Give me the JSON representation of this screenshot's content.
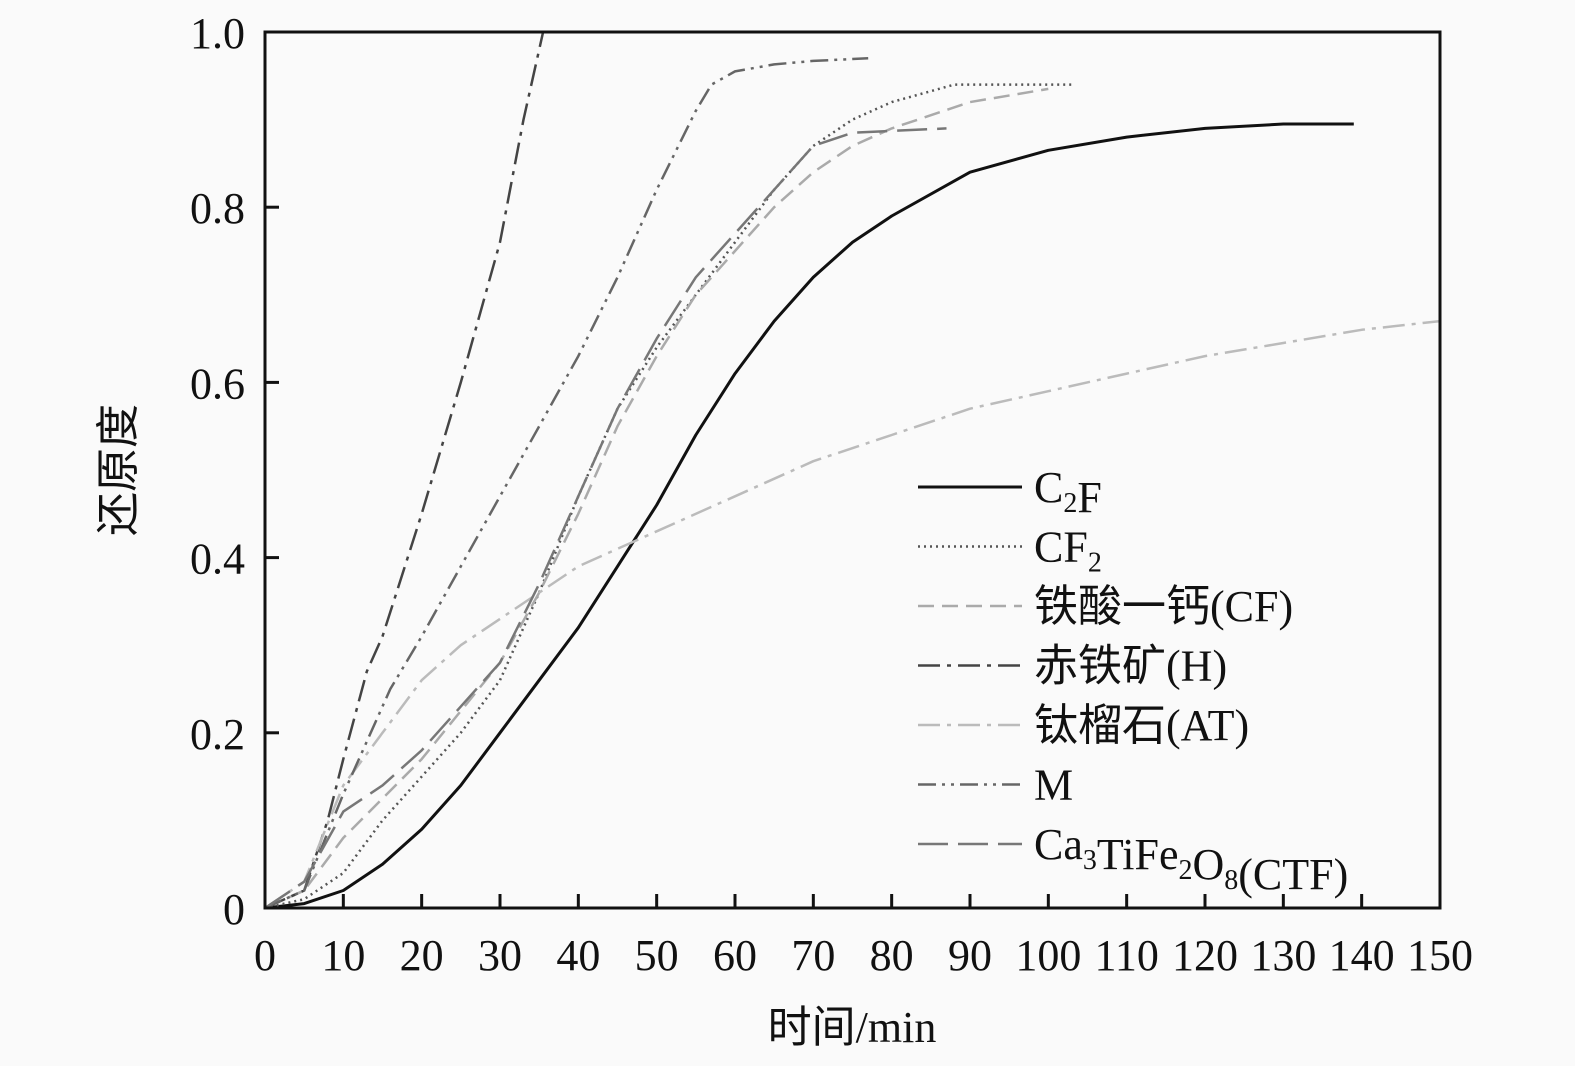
{
  "chart_data": {
    "type": "line",
    "title": "",
    "xlabel": "时间/min",
    "ylabel": "还原度",
    "xlim": [
      0,
      150
    ],
    "ylim": [
      0,
      1.0
    ],
    "xticks": [
      0,
      10,
      20,
      30,
      40,
      50,
      60,
      70,
      80,
      90,
      100,
      110,
      120,
      130,
      140,
      150
    ],
    "yticks": [
      0,
      0.2,
      0.4,
      0.6,
      0.8,
      1.0
    ],
    "ytick_labels": [
      "0",
      "0.2",
      "0.4",
      "0.6",
      "0.8",
      "1.0"
    ],
    "grid": false,
    "legend_position": "center-right",
    "series": [
      {
        "name": "C2F",
        "color": "#111111",
        "dash": "solid",
        "x": [
          0,
          5,
          10,
          15,
          20,
          25,
          30,
          35,
          40,
          45,
          50,
          55,
          60,
          65,
          70,
          75,
          80,
          90,
          100,
          110,
          120,
          130,
          139
        ],
        "y": [
          0,
          0.005,
          0.02,
          0.05,
          0.09,
          0.14,
          0.2,
          0.26,
          0.32,
          0.39,
          0.46,
          0.54,
          0.61,
          0.67,
          0.72,
          0.76,
          0.79,
          0.84,
          0.865,
          0.88,
          0.89,
          0.895,
          0.895
        ]
      },
      {
        "name": "CF2",
        "color": "#555555",
        "dash": "dotted",
        "x": [
          0,
          5,
          10,
          15,
          20,
          25,
          30,
          35,
          40,
          45,
          50,
          55,
          60,
          65,
          70,
          75,
          80,
          88,
          103
        ],
        "y": [
          0,
          0.01,
          0.04,
          0.1,
          0.15,
          0.2,
          0.26,
          0.36,
          0.47,
          0.57,
          0.64,
          0.7,
          0.76,
          0.82,
          0.87,
          0.9,
          0.92,
          0.94,
          0.94
        ]
      },
      {
        "name": "铁酸一钙(CF)",
        "color": "#aaaaaa",
        "dash": "dashed",
        "x": [
          0,
          5,
          10,
          20,
          30,
          35,
          40,
          45,
          50,
          55,
          60,
          65,
          70,
          75,
          80,
          90,
          100
        ],
        "y": [
          0,
          0.02,
          0.08,
          0.17,
          0.28,
          0.36,
          0.45,
          0.55,
          0.63,
          0.7,
          0.75,
          0.8,
          0.84,
          0.87,
          0.89,
          0.92,
          0.935
        ]
      },
      {
        "name": "赤铁矿(H)",
        "color": "#444444",
        "dash": "dash-dot",
        "x": [
          0,
          5,
          8,
          10,
          13,
          15,
          20,
          25,
          30,
          33,
          35,
          35.5
        ],
        "y": [
          0,
          0.02,
          0.1,
          0.17,
          0.27,
          0.31,
          0.45,
          0.6,
          0.76,
          0.9,
          0.98,
          1.0
        ]
      },
      {
        "name": "钛榴石(AT)",
        "color": "#bbbbbb",
        "dash": "dash-dot",
        "x": [
          0,
          5,
          10,
          15,
          20,
          25,
          30,
          35,
          40,
          50,
          60,
          70,
          80,
          90,
          100,
          110,
          120,
          130,
          140,
          150
        ],
        "y": [
          0,
          0.03,
          0.14,
          0.2,
          0.26,
          0.3,
          0.33,
          0.36,
          0.39,
          0.43,
          0.47,
          0.51,
          0.54,
          0.57,
          0.59,
          0.61,
          0.63,
          0.645,
          0.66,
          0.67
        ]
      },
      {
        "name": "M",
        "color": "#666666",
        "dash": "dash-dot-dot",
        "x": [
          0,
          5,
          10,
          16,
          20,
          25,
          30,
          35,
          40,
          45,
          50,
          55,
          57,
          60,
          65,
          70,
          77
        ],
        "y": [
          0,
          0.02,
          0.13,
          0.25,
          0.31,
          0.39,
          0.47,
          0.55,
          0.63,
          0.72,
          0.82,
          0.91,
          0.94,
          0.955,
          0.963,
          0.967,
          0.97
        ]
      },
      {
        "name": "Ca3TiFe2O8(CTF)",
        "color": "#777777",
        "dash": "long-dash",
        "x": [
          0,
          5,
          10,
          15,
          20,
          30,
          35,
          40,
          45,
          50,
          55,
          60,
          65,
          70,
          75,
          87
        ],
        "y": [
          0,
          0.03,
          0.11,
          0.14,
          0.18,
          0.28,
          0.37,
          0.47,
          0.57,
          0.65,
          0.72,
          0.77,
          0.82,
          0.87,
          0.885,
          0.89
        ]
      }
    ]
  }
}
